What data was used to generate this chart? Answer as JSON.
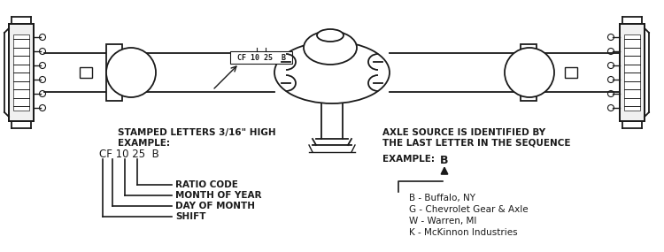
{
  "bg_color": "#ffffff",
  "figsize": [
    7.5,
    2.85
  ],
  "dpi": 100,
  "stamp_label": "CF 10 25  B",
  "left_header": "STAMPED LETTERS 3/16\" HIGH",
  "left_example_label": "EXAMPLE:",
  "left_example_code": "CF 10 25  B",
  "bracket_labels": [
    "SHIFT",
    "DAY OF MONTH",
    "MONTH OF YEAR",
    "RATIO CODE"
  ],
  "right_header_line1": "AXLE SOURCE IS IDENTIFIED BY",
  "right_header_line2": "THE LAST LETTER IN THE SEQUENCE",
  "right_example_label": "EXAMPLE:",
  "right_example_code": "B",
  "right_list": [
    "B - Buffalo, NY",
    "G - Chevrolet Gear & Axle",
    "W - Warren, MI",
    "K - McKinnon Industries"
  ],
  "lc": "#1a1a1a"
}
